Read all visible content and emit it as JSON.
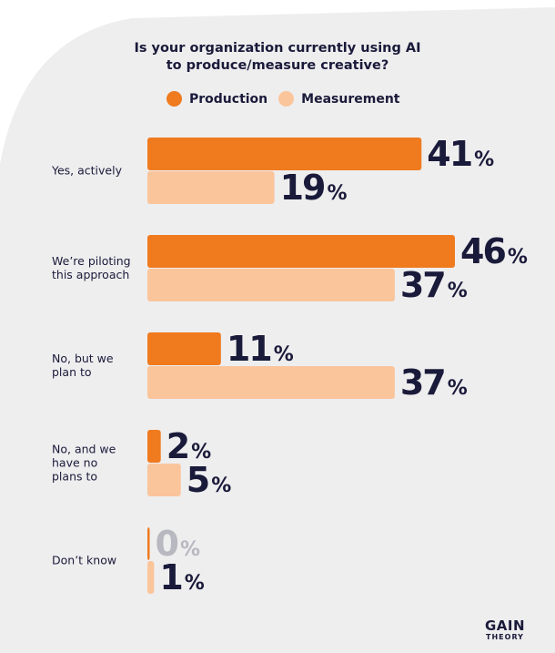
{
  "colors": {
    "production": "#f07a1e",
    "measurement": "#fbc59c",
    "zero_value": "#b8b8c0",
    "text": "#1a1a3a",
    "background_shape": "#eeeeef"
  },
  "legend": {
    "production_label": "Production",
    "measurement_label": "Measurement"
  },
  "logo": {
    "main": "GAIN",
    "sub": "THEORY"
  },
  "chart_data": {
    "type": "bar",
    "orientation": "horizontal",
    "title": "Is your organization currently using AI to produce/measure creative?",
    "title_lines": [
      "Is your organization currently using AI",
      "to produce/measure creative?"
    ],
    "categories": [
      "Yes, actively",
      "We’re piloting this approach",
      "No, but we plan to",
      "No, and we have no plans to",
      "Don’t know"
    ],
    "category_lines": [
      [
        "Yes, actively"
      ],
      [
        "We’re piloting",
        "this approach"
      ],
      [
        "No, but we",
        "plan to"
      ],
      [
        "No, and we",
        "have no",
        "plans to"
      ],
      [
        "Don’t know"
      ]
    ],
    "series": [
      {
        "name": "Production",
        "values": [
          41,
          46,
          11,
          2,
          0
        ]
      },
      {
        "name": "Measurement",
        "values": [
          19,
          37,
          37,
          5,
          1
        ]
      }
    ],
    "unit": "%",
    "xlim": [
      0,
      46
    ],
    "legend_position": "top",
    "grid": false
  }
}
